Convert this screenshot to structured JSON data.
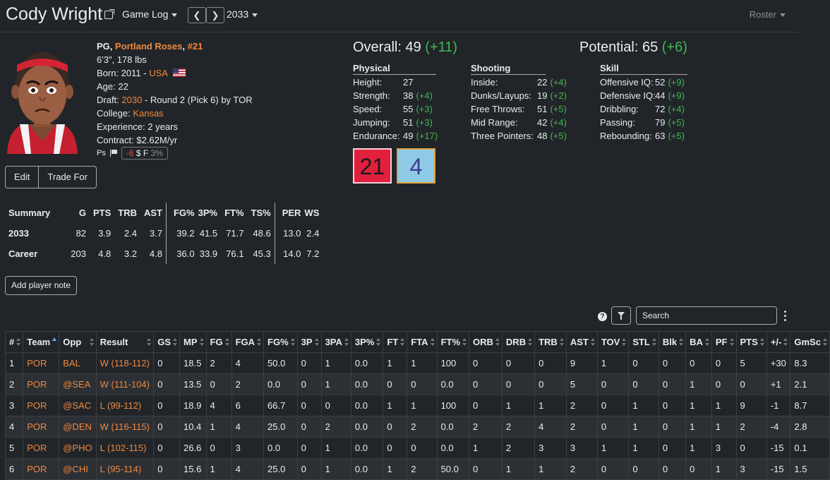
{
  "header": {
    "player_name": "Cody Wright",
    "page_menu": "Game Log",
    "season": "2033",
    "roster_link": "Roster"
  },
  "bio": {
    "pos": "PG, ",
    "team": "Portland Roses",
    "comma": ", ",
    "number": "#21",
    "height_weight": "6'3\", 178 lbs",
    "born_prefix": "Born: 2011 - ",
    "country": "USA",
    "age": "Age: 22",
    "draft_prefix": "Draft: ",
    "draft_year": "2030",
    "draft_suffix": " - Round 2 (Pick 6) by TOR",
    "college_prefix": "College: ",
    "college": "Kansas",
    "experience": "Experience: 2 years",
    "contract": "Contract: $2.62M/yr",
    "mood_ps": "Ps",
    "mood_value": "-6",
    "mood_rest": "$ F",
    "mood_pct": "3%"
  },
  "actions": {
    "edit": "Edit",
    "trade": "Trade For",
    "note": "Add player note"
  },
  "ratings": {
    "overall_label": "Overall: 49",
    "overall_change": "(+11)",
    "potential_label": "Potential: 65",
    "potential_change": "(+6)",
    "physical": {
      "title": "Physical",
      "rows": [
        {
          "k": "Height:",
          "v": "27",
          "c": ""
        },
        {
          "k": "Strength:",
          "v": "38",
          "c": "(+4)"
        },
        {
          "k": "Speed:",
          "v": "55",
          "c": "(+3)"
        },
        {
          "k": "Jumping:",
          "v": "51",
          "c": "(+3)"
        },
        {
          "k": "Endurance:",
          "v": "49",
          "c": "(+17)"
        }
      ]
    },
    "shooting": {
      "title": "Shooting",
      "rows": [
        {
          "k": "Inside:",
          "v": "22",
          "c": "(+4)"
        },
        {
          "k": "Dunks/Layups:",
          "v": "19",
          "c": "(+2)"
        },
        {
          "k": "Free Throws:",
          "v": "51",
          "c": "(+5)"
        },
        {
          "k": "Mid Range:",
          "v": "42",
          "c": "(+4)"
        },
        {
          "k": "Three Pointers:",
          "v": "48",
          "c": "(+5)"
        }
      ]
    },
    "skill": {
      "title": "Skill",
      "rows": [
        {
          "k": "Offensive IQ:",
          "v": "52",
          "c": "(+9)"
        },
        {
          "k": "Defensive IQ:",
          "v": "44",
          "c": "(+9)"
        },
        {
          "k": "Dribbling:",
          "v": "72",
          "c": "(+4)"
        },
        {
          "k": "Passing:",
          "v": "79",
          "c": "(+5)"
        },
        {
          "k": "Rebounding:",
          "v": "63",
          "c": "(+5)"
        }
      ]
    },
    "badges": [
      {
        "value": "21",
        "bg": "#e0203c",
        "fg": "#1a1a1a",
        "border": "#ffd0d8"
      },
      {
        "value": "4",
        "bg": "#8ecae6",
        "fg": "#3a3a8a",
        "border": "#e0a040"
      }
    ]
  },
  "summary": {
    "headers": [
      "Summary",
      "G",
      "PTS",
      "TRB",
      "AST",
      "FG%",
      "3P%",
      "FT%",
      "TS%",
      "PER",
      "WS"
    ],
    "rows": [
      [
        "2033",
        "82",
        "3.9",
        "2.4",
        "3.7",
        "39.2",
        "41.5",
        "71.7",
        "48.6",
        "13.0",
        "2.4"
      ],
      [
        "Career",
        "203",
        "4.8",
        "3.2",
        "4.8",
        "36.0",
        "33.9",
        "76.1",
        "45.3",
        "14.0",
        "7.2"
      ]
    ]
  },
  "log_controls": {
    "search_placeholder": "Search",
    "help": "?"
  },
  "game_log": {
    "headers": [
      "#",
      "Team",
      "Opp",
      "Result",
      "GS",
      "MP",
      "FG",
      "FGA",
      "FG%",
      "3P",
      "3PA",
      "3P%",
      "FT",
      "FTA",
      "FT%",
      "ORB",
      "DRB",
      "TRB",
      "AST",
      "TOV",
      "STL",
      "Blk",
      "BA",
      "PF",
      "PTS",
      "+/-",
      "GmSc"
    ],
    "rows": [
      [
        "1",
        "POR",
        "BAL",
        "W (118-112)",
        "0",
        "18.5",
        "2",
        "4",
        "50.0",
        "0",
        "1",
        "0.0",
        "1",
        "1",
        "100",
        "0",
        "0",
        "0",
        "9",
        "1",
        "0",
        "0",
        "0",
        "0",
        "5",
        "+30",
        "8.3"
      ],
      [
        "2",
        "POR",
        "@SEA",
        "W (111-104)",
        "0",
        "13.5",
        "0",
        "2",
        "0.0",
        "0",
        "1",
        "0.0",
        "0",
        "0",
        "0.0",
        "0",
        "0",
        "0",
        "5",
        "0",
        "0",
        "0",
        "1",
        "0",
        "0",
        "+1",
        "2.1"
      ],
      [
        "3",
        "POR",
        "@SAC",
        "L (99-112)",
        "0",
        "18.9",
        "4",
        "6",
        "66.7",
        "0",
        "0",
        "0.0",
        "1",
        "1",
        "100",
        "0",
        "1",
        "1",
        "2",
        "0",
        "1",
        "0",
        "1",
        "1",
        "9",
        "-1",
        "8.7"
      ],
      [
        "4",
        "POR",
        "@DEN",
        "W (116-115)",
        "0",
        "10.4",
        "1",
        "4",
        "25.0",
        "0",
        "2",
        "0.0",
        "0",
        "2",
        "0.0",
        "2",
        "2",
        "4",
        "2",
        "0",
        "1",
        "0",
        "1",
        "1",
        "2",
        "-4",
        "2.8"
      ],
      [
        "5",
        "POR",
        "@PHO",
        "L (102-115)",
        "0",
        "26.6",
        "0",
        "3",
        "0.0",
        "0",
        "1",
        "0.0",
        "0",
        "0",
        "0.0",
        "1",
        "2",
        "3",
        "3",
        "1",
        "1",
        "0",
        "1",
        "3",
        "0",
        "-15",
        "0.1"
      ],
      [
        "6",
        "POR",
        "@CHI",
        "L (95-114)",
        "0",
        "15.6",
        "1",
        "4",
        "25.0",
        "0",
        "1",
        "0.0",
        "1",
        "2",
        "50.0",
        "0",
        "1",
        "1",
        "2",
        "0",
        "0",
        "0",
        "0",
        "1",
        "3",
        "-15",
        "1.5"
      ]
    ]
  }
}
